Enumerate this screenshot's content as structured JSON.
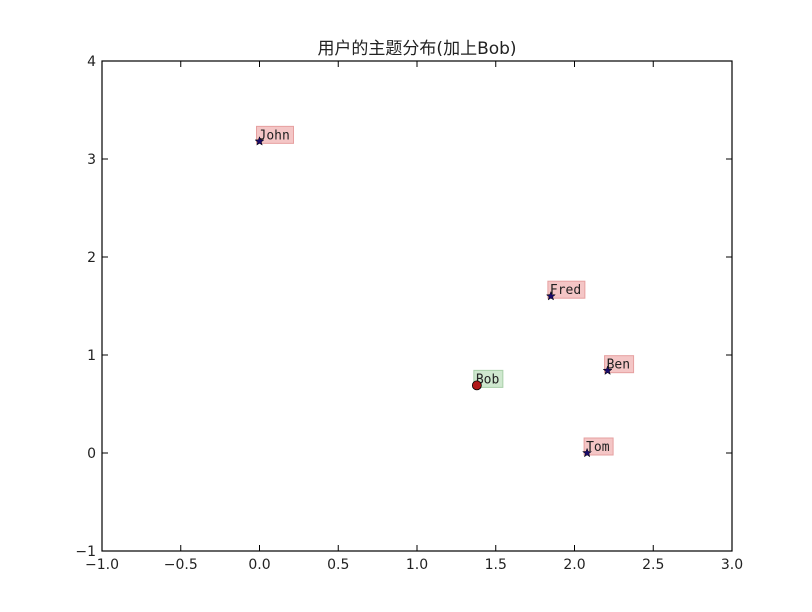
{
  "chart_data": {
    "type": "scatter",
    "title": "用户的主题分布(加上Bob)",
    "xlabel": "",
    "ylabel": "",
    "xlim": [
      -1.0,
      3.0
    ],
    "ylim": [
      -1,
      4
    ],
    "xticks": [
      -1.0,
      -0.5,
      0.0,
      0.5,
      1.0,
      1.5,
      2.0,
      2.5,
      3.0
    ],
    "xtick_labels": [
      "−1.0",
      "−0.5",
      "0.0",
      "0.5",
      "1.0",
      "1.5",
      "2.0",
      "2.5",
      "3.0"
    ],
    "yticks": [
      -1,
      0,
      1,
      2,
      3,
      4
    ],
    "ytick_labels": [
      "−1",
      "0",
      "1",
      "2",
      "3",
      "4"
    ],
    "grid": false,
    "series": [
      {
        "marker": "star",
        "color": "#1a0a6b",
        "label_bg": "#f4c6c6",
        "label_border": "#e6a0a0",
        "points": [
          {
            "label": "John",
            "x": 0.0,
            "y": 3.18
          },
          {
            "label": "Fred",
            "x": 1.85,
            "y": 1.6
          },
          {
            "label": "Ben",
            "x": 2.21,
            "y": 0.84
          },
          {
            "label": "Tom",
            "x": 2.08,
            "y": 0.0
          }
        ]
      },
      {
        "marker": "circle",
        "color": "#b01818",
        "label_bg": "#cfe8cf",
        "label_border": "#a8cfa8",
        "points": [
          {
            "label": "Bob",
            "x": 1.38,
            "y": 0.69
          }
        ]
      }
    ]
  }
}
